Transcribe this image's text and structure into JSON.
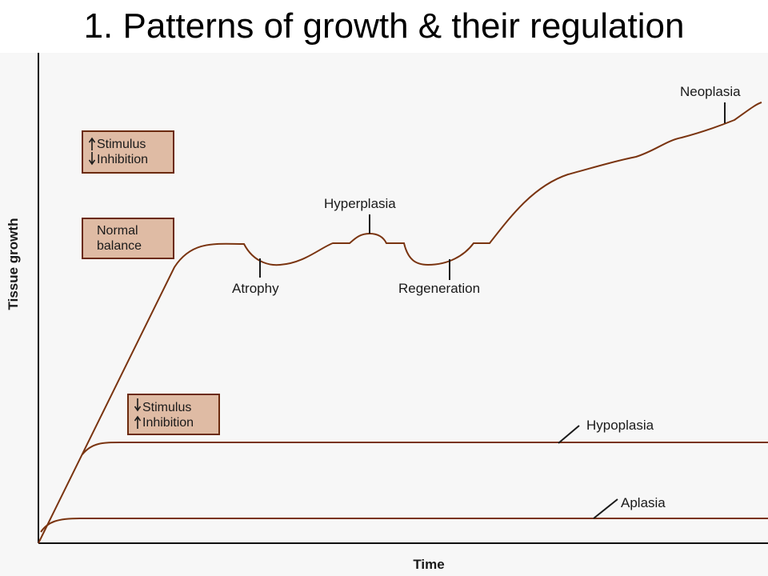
{
  "title": "1. Patterns of growth & their regulation",
  "axes": {
    "y_label": "Tissue growth",
    "x_label": "Time"
  },
  "boxes": {
    "increase": {
      "line1": "Stimulus",
      "line2": "Inhibition"
    },
    "normal": {
      "line1": "Normal",
      "line2": "balance"
    },
    "decrease": {
      "line1": "Stimulus",
      "line2": "Inhibition"
    }
  },
  "labels": {
    "neoplasia": "Neoplasia",
    "hyperplasia": "Hyperplasia",
    "atrophy": "Atrophy",
    "regeneration": "Regeneration",
    "hypoplasia": "Hypoplasia",
    "aplasia": "Aplasia"
  },
  "colors": {
    "curve": "#7a3410",
    "box_fill": "#dfbba4",
    "box_border": "#6b2a0e"
  }
}
